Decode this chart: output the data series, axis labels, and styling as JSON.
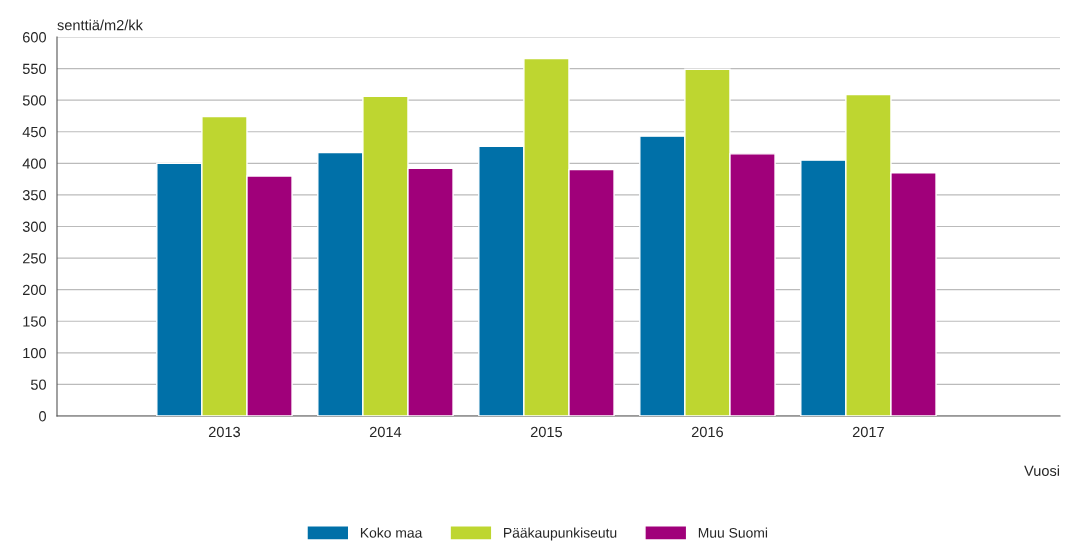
{
  "chart_data": {
    "type": "bar",
    "categories": [
      "2013",
      "2014",
      "2015",
      "2016",
      "2017"
    ],
    "series": [
      {
        "name": "Koko maa",
        "color": "#0070a8",
        "values": [
          400,
          417,
          427,
          443,
          405
        ]
      },
      {
        "name": "Pääkaupunkiseutu",
        "color": "#bed630",
        "values": [
          474,
          506,
          566,
          549,
          509
        ]
      },
      {
        "name": "Muu Suomi",
        "color": "#a0007a",
        "values": [
          380,
          392,
          390,
          415,
          385
        ]
      }
    ],
    "xlabel": "Vuosi",
    "ylabel": "senttiä/m2/kk",
    "ylim": [
      0,
      600
    ],
    "yticks": [
      0,
      50,
      100,
      150,
      200,
      250,
      300,
      350,
      400,
      450,
      500,
      550,
      600
    ],
    "grid": "y",
    "legend": "bottom"
  }
}
